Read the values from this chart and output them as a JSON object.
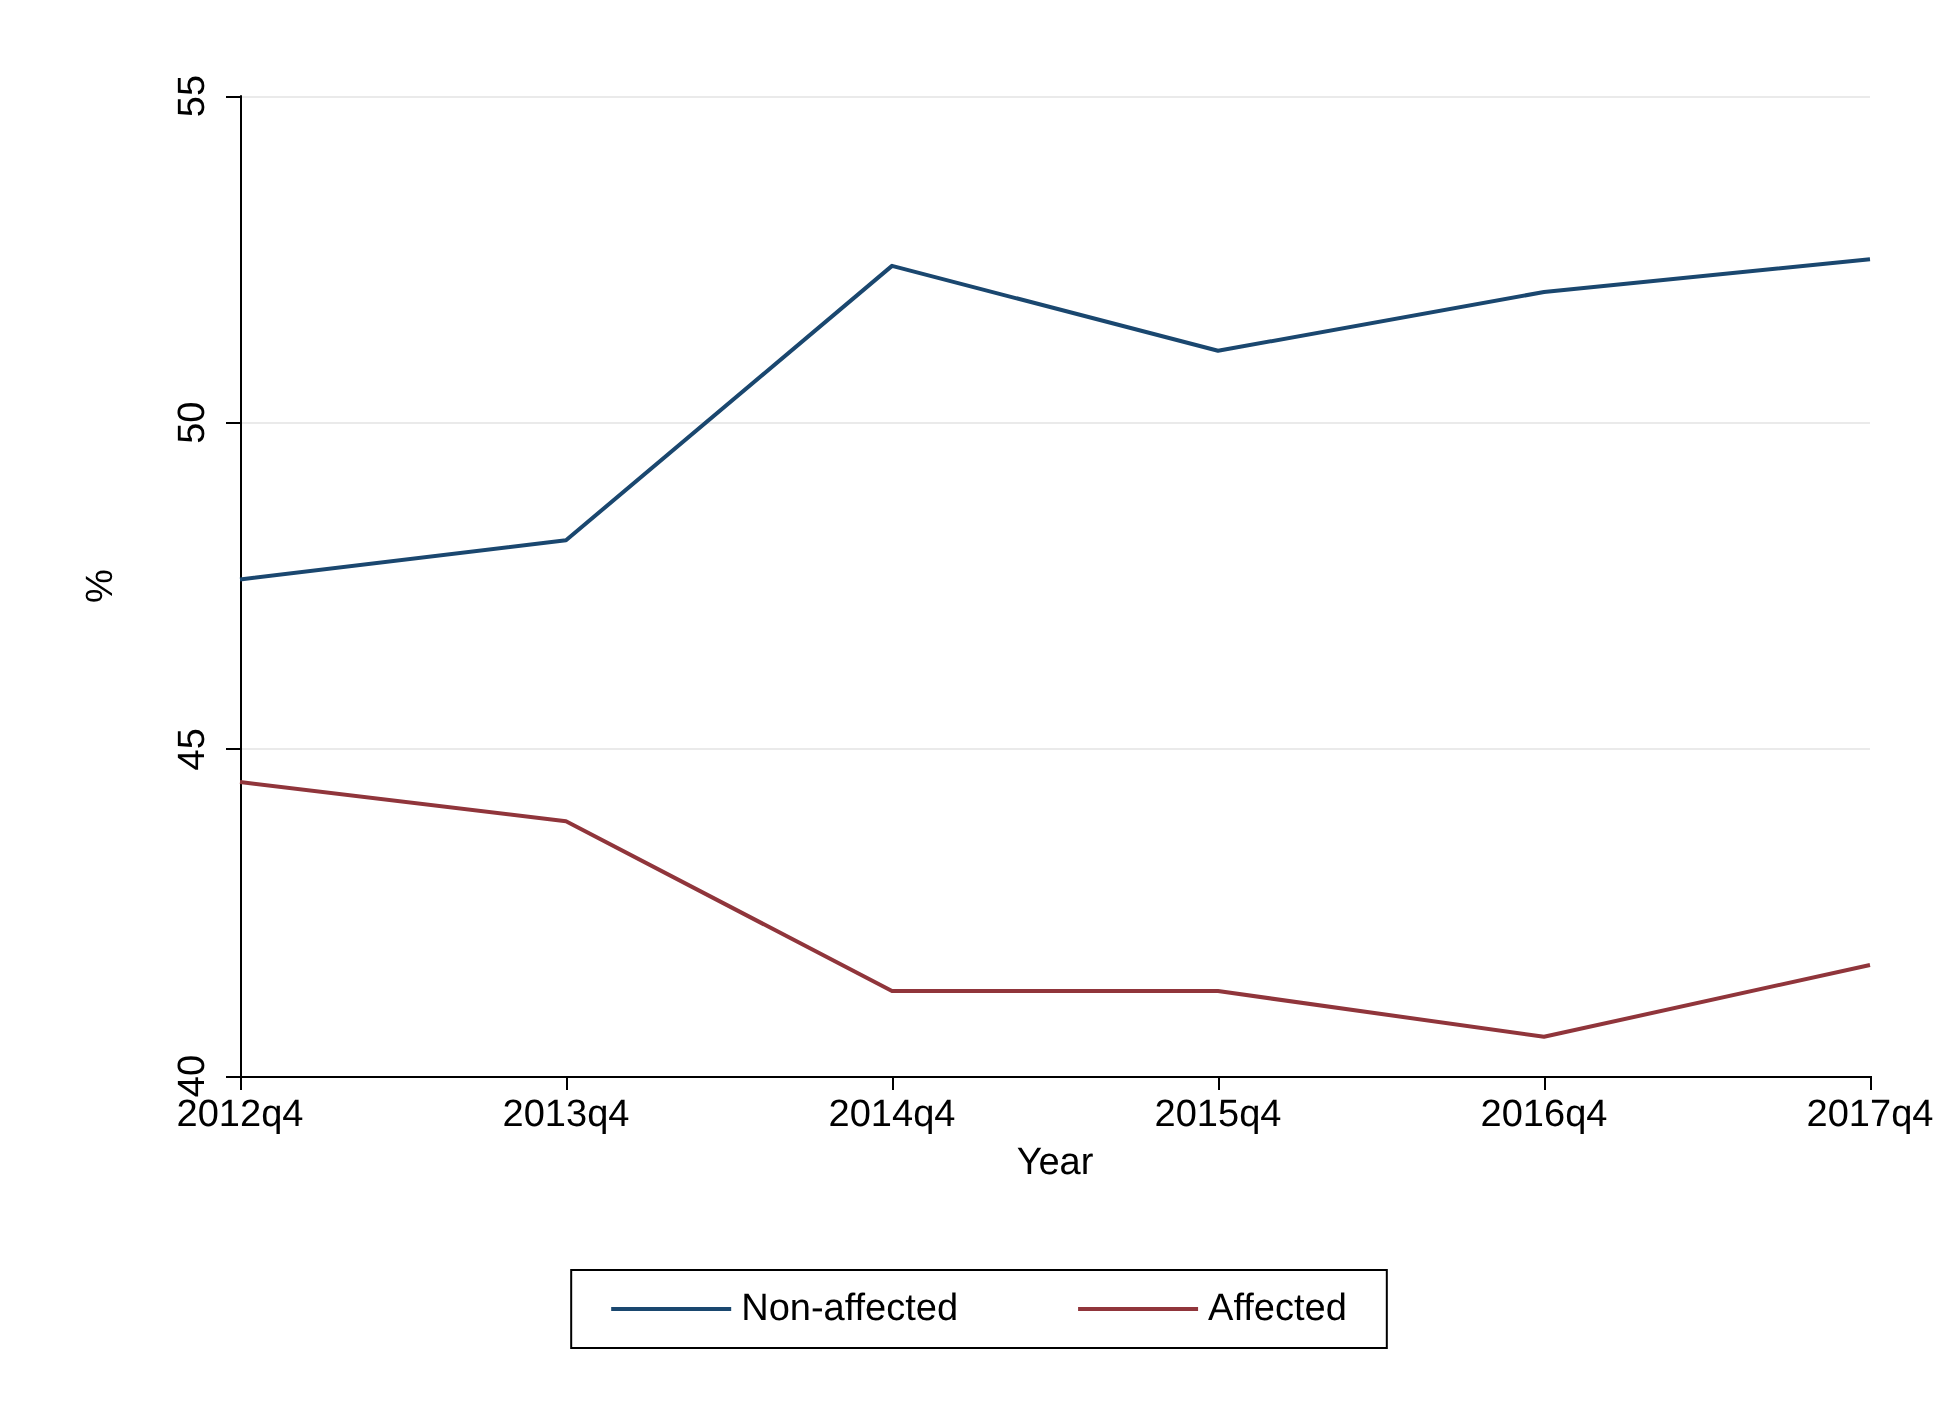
{
  "chart_data": {
    "type": "line",
    "xlabel": "Year",
    "ylabel": "%",
    "categories": [
      "2012q4",
      "2013q4",
      "2014q4",
      "2015q4",
      "2016q4",
      "2017q4"
    ],
    "series": [
      {
        "name": "Non-affected",
        "color": "#1a476f",
        "values": [
          47.6,
          48.2,
          52.4,
          51.1,
          52.0,
          52.5
        ]
      },
      {
        "name": "Affected",
        "color": "#90353b",
        "values": [
          44.5,
          43.9,
          41.3,
          41.3,
          40.6,
          41.7
        ]
      }
    ],
    "ylim": [
      40,
      55
    ],
    "yticks": [
      40,
      45,
      50,
      55
    ],
    "grid": "y",
    "legend": "bottom",
    "marker": "none",
    "line_style": "solid"
  }
}
